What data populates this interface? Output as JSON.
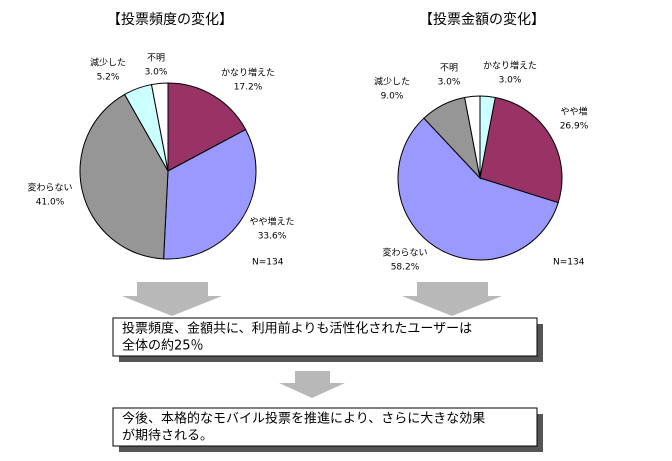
{
  "chart_data": [
    {
      "type": "pie",
      "title": "【投票頻度の変化】",
      "categories": [
        "かなり増えた",
        "やや増えた",
        "変わらない",
        "減少した",
        "不明"
      ],
      "values": [
        17.2,
        33.6,
        41.0,
        5.2,
        3.0
      ],
      "value_labels": [
        "17.2%",
        "33.6%",
        "41.0%",
        "5.2%",
        "3.0%"
      ],
      "colors": [
        "#993366",
        "#9999ff",
        "#969696",
        "#ccffff",
        "#ffffff"
      ],
      "annotation": "N=134"
    },
    {
      "type": "pie",
      "title": "【投票金額の変化】",
      "categories": [
        "かなり増えた",
        "やや増",
        "変わらない",
        "減少した",
        "不明"
      ],
      "values": [
        3.0,
        26.9,
        58.2,
        9.0,
        3.0
      ],
      "value_labels": [
        "3.0%",
        "26.9%",
        "58.2%",
        "9.0%",
        "3.0%"
      ],
      "colors": [
        "#ccffff",
        "#993366",
        "#9999ff",
        "#969696",
        "#ffffff"
      ],
      "annotation": "N=134"
    }
  ],
  "notes": {
    "summary": [
      "投票頻度、金額共に、利用前よりも活性化されたユーザーは",
      "全体の約25％"
    ],
    "outlook": [
      "今後、本格的なモバイル投票を推進により、さらに大きな効果",
      "が期待される。"
    ]
  }
}
